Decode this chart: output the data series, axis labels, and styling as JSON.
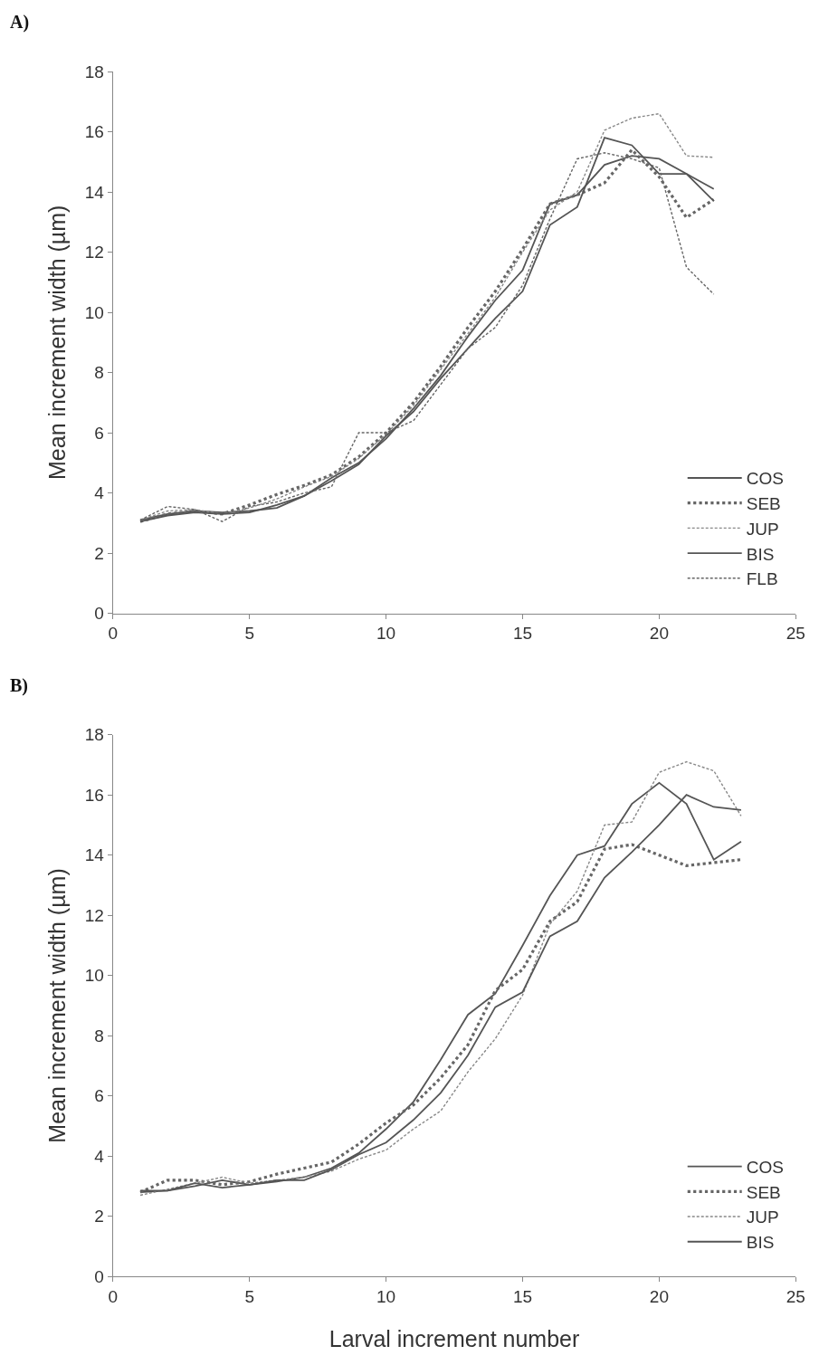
{
  "chart_data": [
    {
      "type": "line",
      "annotations": [
        "A)"
      ],
      "ylabel": "Mean increment width (µm)",
      "x": [
        1,
        2,
        3,
        4,
        5,
        6,
        7,
        8,
        9,
        10,
        11,
        12,
        13,
        14,
        15,
        16,
        17,
        18,
        19,
        20,
        21,
        22
      ],
      "xlim": [
        0,
        25
      ],
      "xticks": [
        0,
        5,
        10,
        15,
        20,
        25
      ],
      "ylim": [
        0,
        18
      ],
      "yticks": [
        0,
        2,
        4,
        6,
        8,
        10,
        12,
        14,
        16,
        18
      ],
      "grid": false,
      "legend": "bottom right",
      "marker": "none",
      "series": [
        {
          "name": "COS",
          "color": "#555555",
          "line_style": "solid",
          "values": [
            3.1,
            3.3,
            3.4,
            3.35,
            3.4,
            3.5,
            3.9,
            4.5,
            5.0,
            5.8,
            6.8,
            7.9,
            9.2,
            10.4,
            11.4,
            13.6,
            13.9,
            14.9,
            15.2,
            15.1,
            14.6,
            14.1
          ]
        },
        {
          "name": "SEB",
          "color": "#666666",
          "line_style": "dotted",
          "values": [
            3.05,
            3.3,
            3.4,
            3.3,
            3.6,
            3.95,
            4.25,
            4.6,
            5.2,
            6.0,
            7.0,
            8.2,
            9.5,
            10.7,
            12.1,
            13.6,
            13.9,
            14.3,
            15.4,
            14.5,
            13.15,
            13.75
          ]
        },
        {
          "name": "JUP",
          "color": "#888888",
          "line_style": "dashed",
          "values": [
            3.1,
            3.4,
            3.45,
            3.3,
            3.5,
            3.8,
            4.2,
            4.55,
            5.15,
            5.95,
            6.9,
            8.1,
            9.3,
            10.5,
            12.0,
            13.4,
            14.0,
            16.05,
            16.45,
            16.6,
            15.2,
            15.15
          ]
        },
        {
          "name": "BIS",
          "color": "#555555",
          "line_style": "solid",
          "values": [
            3.05,
            3.25,
            3.35,
            3.3,
            3.35,
            3.6,
            3.9,
            4.4,
            4.95,
            5.9,
            6.7,
            7.8,
            8.8,
            9.8,
            10.7,
            12.9,
            13.5,
            15.8,
            15.55,
            14.6,
            14.6,
            13.7
          ]
        },
        {
          "name": "FLB",
          "color": "#666666",
          "line_style": "dashed",
          "values": [
            3.1,
            3.55,
            3.45,
            3.05,
            3.55,
            3.7,
            4.0,
            4.2,
            6.0,
            6.0,
            6.4,
            7.6,
            8.8,
            9.5,
            10.9,
            13.1,
            15.1,
            15.3,
            15.1,
            14.8,
            11.5,
            10.6
          ]
        }
      ]
    },
    {
      "type": "line",
      "annotations": [
        "B)"
      ],
      "xlabel": "Larval increment number",
      "ylabel": "Mean increment width (µm)",
      "x": [
        1,
        2,
        3,
        4,
        5,
        6,
        7,
        8,
        9,
        10,
        11,
        12,
        13,
        14,
        15,
        16,
        17,
        18,
        19,
        20,
        21,
        22,
        23
      ],
      "xlim": [
        0,
        25
      ],
      "xticks": [
        0,
        5,
        10,
        15,
        20,
        25
      ],
      "ylim": [
        0,
        18
      ],
      "yticks": [
        0,
        2,
        4,
        6,
        8,
        10,
        12,
        14,
        16,
        18
      ],
      "grid": false,
      "legend": "bottom right",
      "marker": "none",
      "series": [
        {
          "name": "COS",
          "color": "#555555",
          "line_style": "solid",
          "values": [
            2.8,
            2.85,
            3.0,
            3.2,
            3.05,
            3.15,
            3.3,
            3.6,
            4.1,
            4.9,
            5.8,
            7.2,
            8.7,
            9.4,
            11.0,
            12.65,
            14.0,
            14.3,
            15.7,
            16.4,
            15.7,
            13.85,
            14.45
          ]
        },
        {
          "name": "SEB",
          "color": "#666666",
          "line_style": "dotted",
          "values": [
            2.8,
            3.2,
            3.2,
            3.05,
            3.15,
            3.4,
            3.6,
            3.8,
            4.4,
            5.1,
            5.7,
            6.6,
            7.7,
            9.5,
            10.2,
            11.8,
            12.45,
            14.2,
            14.35,
            14.0,
            13.65,
            13.75,
            13.85
          ]
        },
        {
          "name": "JUP",
          "color": "#888888",
          "line_style": "dashed",
          "values": [
            2.7,
            2.9,
            3.1,
            3.3,
            3.1,
            3.2,
            3.3,
            3.5,
            3.9,
            4.2,
            4.9,
            5.5,
            6.8,
            7.9,
            9.35,
            11.7,
            12.8,
            15.0,
            15.1,
            16.75,
            17.1,
            16.8,
            15.3
          ]
        },
        {
          "name": "BIS",
          "color": "#555555",
          "line_style": "solid",
          "values": [
            2.85,
            2.85,
            3.1,
            2.95,
            3.05,
            3.2,
            3.2,
            3.55,
            4.05,
            4.45,
            5.2,
            6.1,
            7.35,
            8.95,
            9.45,
            11.3,
            11.8,
            13.25,
            14.1,
            15.0,
            16.0,
            15.6,
            15.5
          ]
        }
      ]
    }
  ]
}
